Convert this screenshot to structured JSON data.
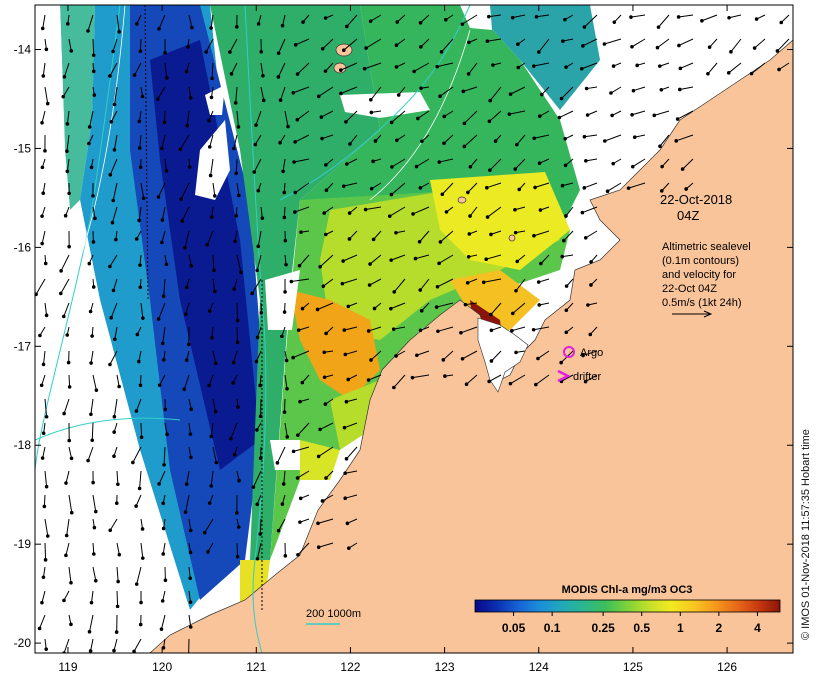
{
  "map": {
    "lon_ticks": [
      "119",
      "120",
      "121",
      "122",
      "123",
      "124",
      "125",
      "126"
    ],
    "lat_ticks": [
      "-14",
      "-15",
      "-16",
      "-17",
      "-18",
      "-19",
      "-20"
    ],
    "extent": {
      "lon_min": 118.65,
      "lon_max": 126.7,
      "lat_min": -20.1,
      "lat_max": -13.55
    },
    "land_color": "#f9c49a",
    "date_line1": "22-Oct-2018",
    "date_line2": "04Z",
    "altimetry_text": [
      "Altimetric sealevel",
      "(0.1m contours)",
      "and velocity for",
      "22-Oct 04Z",
      "0.5m/s (1kt 24h)"
    ],
    "legend": {
      "argo_label": "Argo",
      "argo_color": "#e020e0",
      "drifter_label": "drifter",
      "drifter_color": "#e020e0"
    },
    "depth_contours_label": "200  1000m",
    "depth_contour_color": "#33cccc",
    "colorbar": {
      "title": "MODIS Chl-a mg/m3 OC3",
      "tick_labels": [
        "0.05",
        "0.1",
        "0.25",
        "0.5",
        "1",
        "2",
        "4"
      ],
      "colors": [
        "#08088a",
        "#0a2fb0",
        "#1563d6",
        "#1b8fd8",
        "#22a9b8",
        "#2bb68e",
        "#3cbf5a",
        "#7fd23a",
        "#c4e02a",
        "#f2ea20",
        "#f8c820",
        "#f59a1c",
        "#e86a18",
        "#c83a10",
        "#8a1408"
      ]
    },
    "copyright": "© IMOS 01-Nov-2018 11:57:35 Hobart time"
  }
}
